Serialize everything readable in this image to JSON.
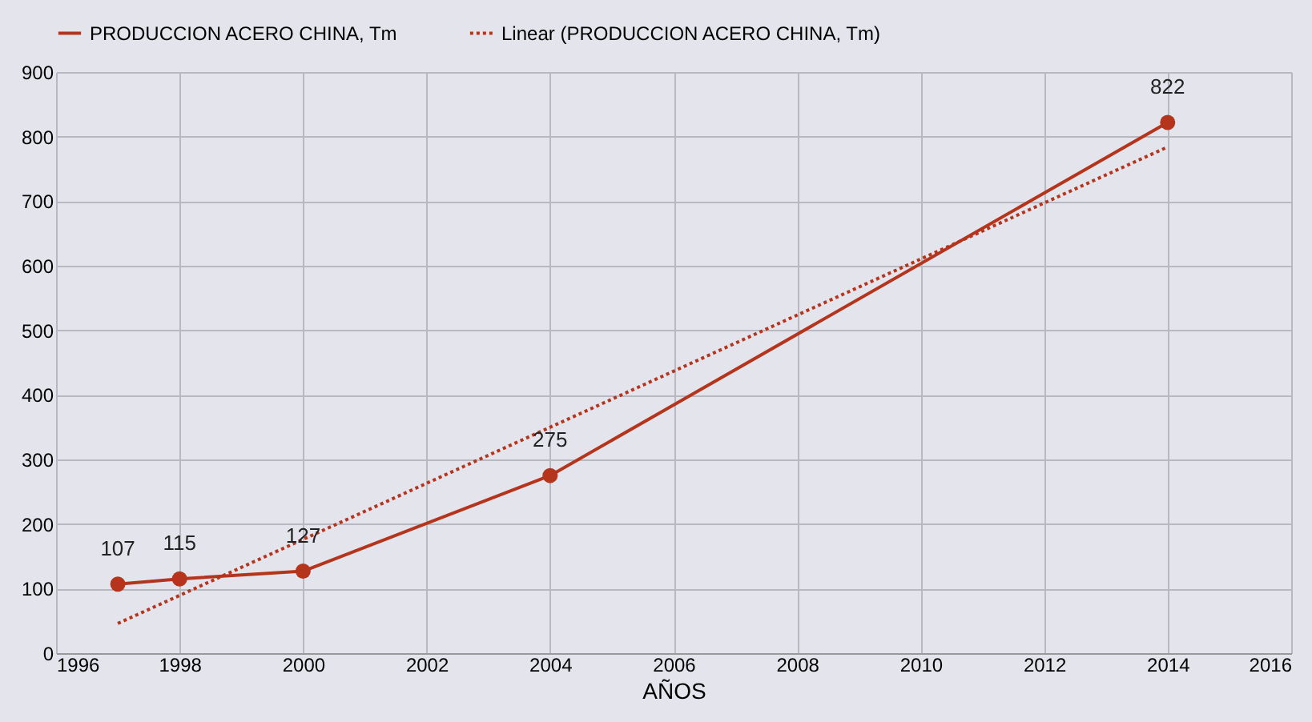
{
  "chart_data": {
    "type": "line",
    "xlabel": "AÑOS",
    "xlim": [
      1996,
      2016
    ],
    "xticks": [
      1996,
      1998,
      2000,
      2002,
      2004,
      2006,
      2008,
      2010,
      2012,
      2014,
      2016
    ],
    "ylim": [
      0,
      900
    ],
    "yticks": [
      0,
      100,
      200,
      300,
      400,
      500,
      600,
      700,
      800,
      900
    ],
    "grid": true,
    "legend": "top",
    "series": [
      {
        "name": "PRODUCCION ACERO CHINA, Tm",
        "color": "#b5341c",
        "x": [
          1997,
          1998,
          2000,
          2004,
          2014
        ],
        "values": [
          107,
          115,
          127,
          275,
          822
        ],
        "value_labels": [
          "107",
          "115",
          "127",
          "275",
          "822"
        ],
        "marker": "circle",
        "line_style": "solid"
      },
      {
        "name": "Linear (PRODUCCION ACERO CHINA, Tm)",
        "color": "#b5341c",
        "x": [
          1997,
          2014
        ],
        "values": [
          46,
          784
        ],
        "marker": "none",
        "line_style": "dotted"
      }
    ]
  }
}
